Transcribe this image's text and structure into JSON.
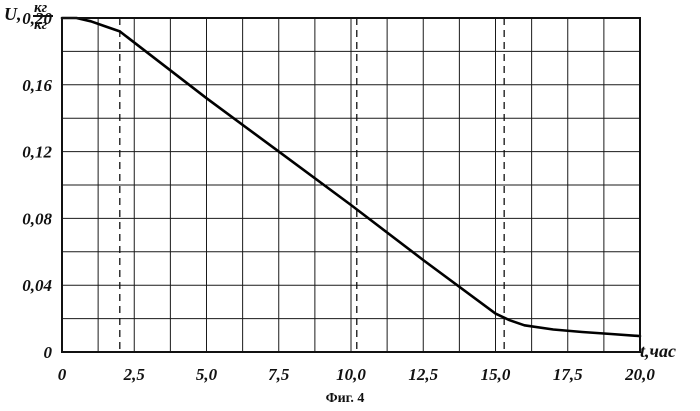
{
  "chart_data": {
    "type": "line",
    "title": "",
    "caption": "Фиг. 4",
    "xlabel": "t,час",
    "ylabel_symbol": "U,",
    "ylabel_unit_numerator": "кг",
    "ylabel_unit_denominator": "кг",
    "xlim": [
      0,
      20
    ],
    "ylim": [
      0,
      0.2
    ],
    "x_ticks": [
      0,
      2.5,
      5,
      7.5,
      10,
      12.5,
      15,
      17.5,
      20
    ],
    "x_tick_labels": [
      "0",
      "2,5",
      "5,0",
      "7,5",
      "10,0",
      "12,5",
      "15,0",
      "17,5",
      "20,0"
    ],
    "y_ticks": [
      0,
      0.04,
      0.08,
      0.12,
      0.16,
      0.2
    ],
    "y_tick_labels": [
      "0",
      "0,04",
      "0,08",
      "0,12",
      "0,16",
      "0,20"
    ],
    "grid": true,
    "x_gridlines": [
      0,
      1.25,
      2.5,
      3.75,
      5,
      6.25,
      7.5,
      8.75,
      10,
      11.25,
      12.5,
      13.75,
      15,
      16.25,
      17.5,
      18.75,
      20
    ],
    "y_gridlines": [
      0,
      0.02,
      0.04,
      0.06,
      0.08,
      0.1,
      0.12,
      0.14,
      0.16,
      0.18,
      0.2
    ],
    "vertical_dashed_lines_x": [
      2.0,
      10.2,
      15.3
    ],
    "series": [
      {
        "x": [
          0,
          0.5,
          1.0,
          1.5,
          2.0,
          5,
          7.5,
          10,
          12.5,
          15,
          15.5,
          16,
          17,
          18,
          19,
          20
        ],
        "y": [
          0.2,
          0.2,
          0.198,
          0.195,
          0.192,
          0.152,
          0.12,
          0.088,
          0.055,
          0.023,
          0.019,
          0.016,
          0.0135,
          0.012,
          0.0108,
          0.0095
        ]
      }
    ]
  }
}
